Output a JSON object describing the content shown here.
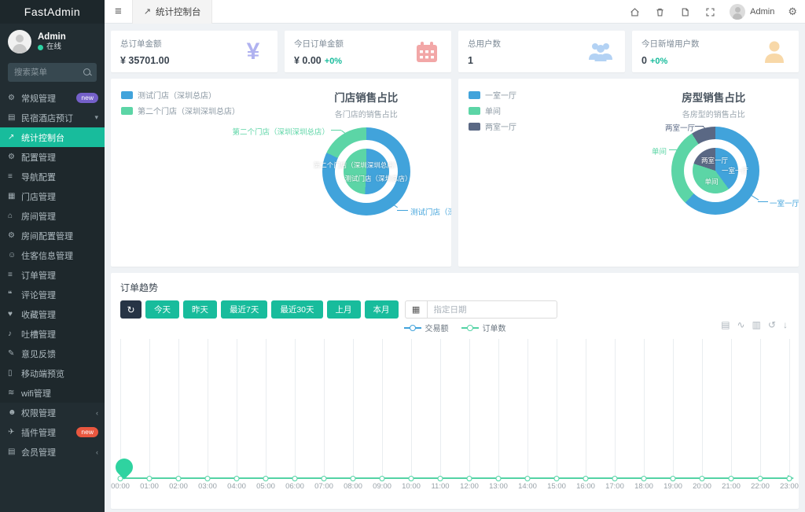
{
  "app": {
    "brand": "FastAdmin"
  },
  "colors": {
    "accent": "#18bc9c",
    "blue": "#41a3db",
    "green": "#5cd5a6",
    "navy": "#5a6884"
  },
  "topbar": {
    "menu_toggle": "≡",
    "tab": {
      "icon_glyph": "↗",
      "label": "统计控制台"
    },
    "user": "Admin",
    "icons": [
      "home-icon",
      "trash-icon",
      "refresh-cache-icon",
      "fullscreen-icon",
      "settings-gears-icon"
    ]
  },
  "sidebar": {
    "user": {
      "name": "Admin",
      "status": "在线"
    },
    "search_placeholder": "搜索菜单",
    "menu_top": [
      {
        "label": "常规管理",
        "icon": "gears-icon",
        "glyph": "⚙",
        "badge": "new",
        "badge_bg": "#7460c9"
      },
      {
        "label": "民宿酒店预订",
        "icon": "table-list-icon",
        "glyph": "▤",
        "chevron": "▾"
      }
    ],
    "menu_sub": [
      {
        "label": "统计控制台",
        "icon": "line-chart-icon",
        "glyph": "↗",
        "state": "active"
      },
      {
        "label": "配置管理",
        "icon": "gear-icon",
        "glyph": "⚙"
      },
      {
        "label": "导航配置",
        "icon": "list-icon",
        "glyph": "≡"
      },
      {
        "label": "门店管理",
        "icon": "store-icon",
        "glyph": "▦"
      },
      {
        "label": "房间管理",
        "icon": "home-icon",
        "glyph": "⌂"
      },
      {
        "label": "房间配置管理",
        "icon": "gear-icon",
        "glyph": "⚙"
      },
      {
        "label": "住客信息管理",
        "icon": "guest-icon",
        "glyph": "☺"
      },
      {
        "label": "订单管理",
        "icon": "order-list-icon",
        "glyph": "≡"
      },
      {
        "label": "评论管理",
        "icon": "comments-icon",
        "glyph": "❝"
      },
      {
        "label": "收藏管理",
        "icon": "heart-icon",
        "glyph": "♥"
      },
      {
        "label": "吐槽管理",
        "icon": "mic-icon",
        "glyph": "♪"
      },
      {
        "label": "意见反馈",
        "icon": "pencil-icon",
        "glyph": "✎"
      },
      {
        "label": "移动端预览",
        "icon": "mobile-icon",
        "glyph": "▯"
      },
      {
        "label": "wifi管理",
        "icon": "wifi-icon",
        "glyph": "≋"
      }
    ],
    "menu_bottom": [
      {
        "label": "权限管理",
        "icon": "users-icon",
        "glyph": "☻",
        "chevron": "‹"
      },
      {
        "label": "插件管理",
        "icon": "plugin-icon",
        "glyph": "✈",
        "badge": "new",
        "badge_bg": "#e9573f"
      },
      {
        "label": "会员管理",
        "icon": "members-icon",
        "glyph": "▤",
        "chevron": "‹"
      }
    ]
  },
  "stats": [
    {
      "title": "总订单金额",
      "value": "¥ 35701.00",
      "delta": "",
      "icon": "yen-icon",
      "icon_color": "#b0b2f0"
    },
    {
      "title": "今日订单金额",
      "value": "¥ 0.00",
      "delta": "+0%",
      "icon": "calendar-icon",
      "icon_color": "#f2a7a7"
    },
    {
      "title": "总用户数",
      "value": "1",
      "delta": "",
      "icon": "users-group-icon",
      "icon_color": "#b3d2f4"
    },
    {
      "title": "今日新增用户数",
      "value": "0",
      "delta": "+0%",
      "icon": "user-icon",
      "icon_color": "#f8d8a8"
    }
  ],
  "trend": {
    "title": "订单趋势",
    "refresh_glyph": "↻",
    "buttons": [
      "今天",
      "昨天",
      "最近7天",
      "最近30天",
      "上月",
      "本月"
    ],
    "date_placeholder": "指定日期",
    "calendar_glyph": "▦",
    "legend": [
      {
        "label": "交易额",
        "color": "#41a3db"
      },
      {
        "label": "订单数",
        "color": "#54d3a5"
      }
    ],
    "toolbox": [
      {
        "icon": "dataview-icon",
        "glyph": "▤"
      },
      {
        "icon": "line-chart-toggle-icon",
        "glyph": "∿"
      },
      {
        "icon": "bar-chart-toggle-icon",
        "glyph": "▥"
      },
      {
        "icon": "restore-icon",
        "glyph": "↺"
      },
      {
        "icon": "download-icon",
        "glyph": "↓"
      }
    ]
  },
  "chart_data": [
    {
      "type": "pie",
      "title": "门店销售占比",
      "subtitle": "各门店的销售占比",
      "legend": [
        {
          "label": "测试门店（深圳总店）",
          "color": "#41a3db"
        },
        {
          "label": "第二个门店（深圳深圳总店）",
          "color": "#5cd5a6"
        }
      ],
      "outer": [
        {
          "name": "测试门店（深圳总店）",
          "color": "#41a3db",
          "pct": 82
        },
        {
          "name": "第二个门店（深圳深圳总店）",
          "color": "#5cd5a6",
          "pct": 18
        }
      ],
      "inner": [
        {
          "name": "测试门店（深圳总店）",
          "color": "#41a3db",
          "pct": 51
        },
        {
          "name": "第二个门店（深圳深圳总店）",
          "color": "#5cd5a6",
          "pct": 49
        }
      ],
      "legend_position": "top-left"
    },
    {
      "type": "pie",
      "title": "房型销售占比",
      "subtitle": "各房型的销售占比",
      "legend": [
        {
          "label": "一室一厅",
          "color": "#41a3db"
        },
        {
          "label": "单间",
          "color": "#5cd5a6"
        },
        {
          "label": "两室一厅",
          "color": "#5a6884"
        }
      ],
      "outer": [
        {
          "name": "一室一厅",
          "color": "#41a3db",
          "pct": 62
        },
        {
          "name": "单间",
          "color": "#5cd5a6",
          "pct": 29
        },
        {
          "name": "两室一厅",
          "color": "#5a6884",
          "pct": 9
        }
      ],
      "inner": [
        {
          "name": "一室一厅",
          "color": "#41a3db",
          "pct": 40
        },
        {
          "name": "单间",
          "color": "#5cd5a6",
          "pct": 40
        },
        {
          "name": "两室一厅",
          "color": "#5a6884",
          "pct": 20
        }
      ],
      "legend_position": "top-left"
    },
    {
      "type": "line",
      "title": "订单趋势",
      "x": [
        "00:00",
        "01:00",
        "02:00",
        "03:00",
        "04:00",
        "05:00",
        "06:00",
        "07:00",
        "08:00",
        "09:00",
        "10:00",
        "11:00",
        "12:00",
        "13:00",
        "14:00",
        "15:00",
        "16:00",
        "17:00",
        "18:00",
        "19:00",
        "20:00",
        "21:00",
        "22:00",
        "23:00"
      ],
      "series": [
        {
          "name": "交易额",
          "color": "#41a3db",
          "values": [
            0,
            0,
            0,
            0,
            0,
            0,
            0,
            0,
            0,
            0,
            0,
            0,
            0,
            0,
            0,
            0,
            0,
            0,
            0,
            0,
            0,
            0,
            0,
            0
          ]
        },
        {
          "name": "订单数",
          "color": "#54d3a5",
          "values": [
            0,
            0,
            0,
            0,
            0,
            0,
            0,
            0,
            0,
            0,
            0,
            0,
            0,
            0,
            0,
            0,
            0,
            0,
            0,
            0,
            0,
            0,
            0,
            0
          ]
        }
      ],
      "ylim": [
        0,
        1
      ],
      "grid": "vertical-only",
      "legend_position": "top-center"
    }
  ]
}
